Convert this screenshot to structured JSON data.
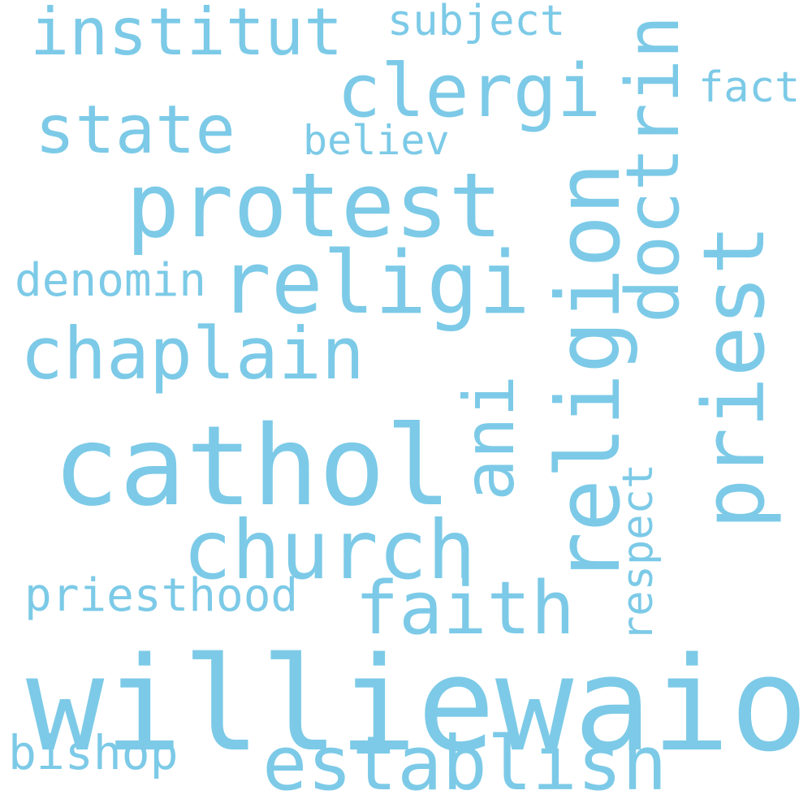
{
  "color": "#7ccae7",
  "words": {
    "williewaiola": "williewaiola",
    "cathol": "cathol",
    "protest": "protest",
    "religi": "religi",
    "religion": "religion",
    "church": "church",
    "priest": "priest",
    "establish": "establish",
    "chaplain": "chaplain",
    "faith": "faith",
    "clergi": "clergi",
    "doctrin": "doctrin",
    "institut": "institut",
    "state": "state",
    "ani": "ani",
    "priesthood": "priesthood",
    "bishop": "bishop",
    "denomin": "denomin",
    "respect": "respect",
    "believ": "believ",
    "subject": "subject",
    "fact": "fact"
  }
}
